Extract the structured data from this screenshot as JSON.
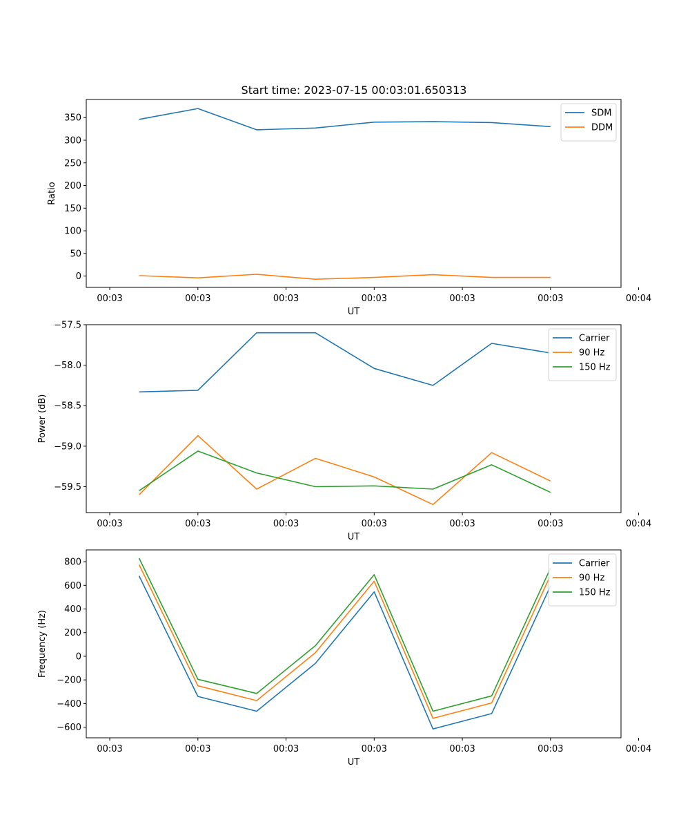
{
  "figure_title": "Start time: 2023-07-15 00:03:01.650313",
  "colors": {
    "blue": "#1f77b4",
    "orange": "#ff7f0e",
    "green": "#2ca02c"
  },
  "chart_data": [
    {
      "type": "line",
      "title": "Start time: 2023-07-15 00:03:01.650313",
      "xlabel": "UT",
      "ylabel": "Ratio",
      "xlim": [
        -0.6,
        8.5
      ],
      "ylim": [
        -25,
        390
      ],
      "x_tick_positions": [
        -0.2,
        1.3,
        2.8,
        4.3,
        5.8,
        7.3,
        8.8
      ],
      "x_tick_labels": [
        "00:03",
        "00:03",
        "00:03",
        "00:03",
        "00:03",
        "00:03",
        "00:04"
      ],
      "y_ticks": [
        0,
        50,
        100,
        150,
        200,
        250,
        300,
        350
      ],
      "y_tick_labels": [
        "0",
        "50",
        "100",
        "150",
        "200",
        "250",
        "300",
        "350"
      ],
      "legend": "top-right",
      "x": [
        0.3,
        1.3,
        2.3,
        3.3,
        4.3,
        5.3,
        6.3,
        7.3
      ],
      "series": [
        {
          "name": "SDM",
          "color": "#1f77b4",
          "values": [
            346,
            370,
            323,
            327,
            340,
            341,
            339,
            330
          ]
        },
        {
          "name": "DDM",
          "color": "#ff7f0e",
          "values": [
            1,
            -4,
            4,
            -7,
            -3,
            3,
            -3,
            -3
          ]
        }
      ]
    },
    {
      "type": "line",
      "title": "",
      "xlabel": "UT",
      "ylabel": "Power (dB)",
      "xlim": [
        -0.6,
        8.5
      ],
      "ylim": [
        -59.82,
        -57.5
      ],
      "x_tick_positions": [
        -0.2,
        1.3,
        2.8,
        4.3,
        5.8,
        7.3,
        8.8
      ],
      "x_tick_labels": [
        "00:03",
        "00:03",
        "00:03",
        "00:03",
        "00:03",
        "00:03",
        "00:04"
      ],
      "y_ticks": [
        -59.5,
        -59.0,
        -58.5,
        -58.0,
        -57.5
      ],
      "y_tick_labels": [
        "−59.5",
        "−59.0",
        "−58.5",
        "−58.0",
        "−57.5"
      ],
      "legend": "top-right",
      "x": [
        0.3,
        1.3,
        2.3,
        3.3,
        4.3,
        5.3,
        6.3,
        7.3
      ],
      "series": [
        {
          "name": "Carrier",
          "color": "#1f77b4",
          "values": [
            -58.33,
            -58.31,
            -57.6,
            -57.6,
            -58.04,
            -58.25,
            -57.73,
            -57.85
          ]
        },
        {
          "name": "90 Hz",
          "color": "#ff7f0e",
          "values": [
            -59.6,
            -58.87,
            -59.53,
            -59.15,
            -59.38,
            -59.72,
            -59.08,
            -59.43
          ]
        },
        {
          "name": "150 Hz",
          "color": "#2ca02c",
          "values": [
            -59.55,
            -59.06,
            -59.33,
            -59.5,
            -59.49,
            -59.53,
            -59.23,
            -59.57
          ]
        }
      ]
    },
    {
      "type": "line",
      "title": "",
      "xlabel": "UT",
      "ylabel": "Frequency (Hz)",
      "xlim": [
        -0.6,
        8.5
      ],
      "ylim": [
        -690,
        900
      ],
      "x_tick_positions": [
        -0.2,
        1.3,
        2.8,
        4.3,
        5.8,
        7.3,
        8.8
      ],
      "x_tick_labels": [
        "00:03",
        "00:03",
        "00:03",
        "00:03",
        "00:03",
        "00:03",
        "00:04"
      ],
      "y_ticks": [
        -600,
        -400,
        -200,
        0,
        200,
        400,
        600,
        800
      ],
      "y_tick_labels": [
        "−600",
        "−400",
        "−200",
        "0",
        "200",
        "400",
        "600",
        "800"
      ],
      "legend": "top-right",
      "x": [
        0.3,
        1.3,
        2.3,
        3.3,
        4.3,
        5.3,
        6.3,
        7.3
      ],
      "series": [
        {
          "name": "Carrier",
          "color": "#1f77b4",
          "values": [
            680,
            -340,
            -465,
            -60,
            545,
            -615,
            -485,
            595
          ]
        },
        {
          "name": "90 Hz",
          "color": "#ff7f0e",
          "values": [
            775,
            -250,
            -375,
            30,
            635,
            -525,
            -395,
            685
          ]
        },
        {
          "name": "150 Hz",
          "color": "#2ca02c",
          "values": [
            830,
            -195,
            -315,
            90,
            690,
            -465,
            -335,
            745
          ]
        }
      ]
    }
  ]
}
